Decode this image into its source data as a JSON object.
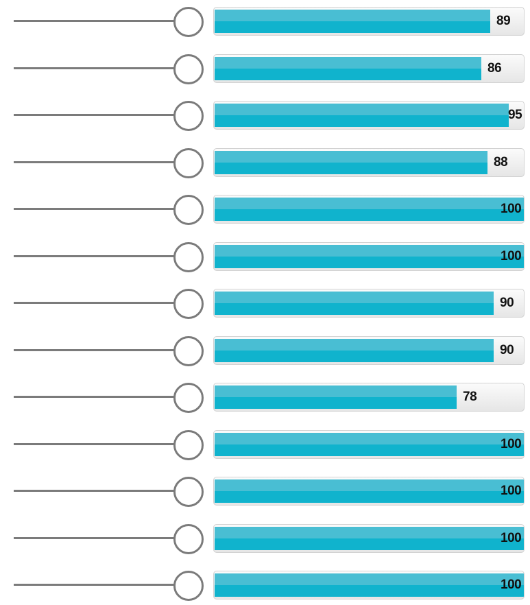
{
  "chart_data": {
    "type": "bar",
    "orientation": "horizontal",
    "values": [
      89,
      86,
      95,
      88,
      100,
      100,
      90,
      90,
      78,
      100,
      100,
      100,
      100
    ],
    "xlim": [
      0,
      100
    ],
    "bar_color": "#10b3cd",
    "bar_highlight_color": "#49bed3",
    "track_color": "#eeeeee",
    "connector_color": "#7b7b7b",
    "grid": false,
    "legend": "none"
  }
}
